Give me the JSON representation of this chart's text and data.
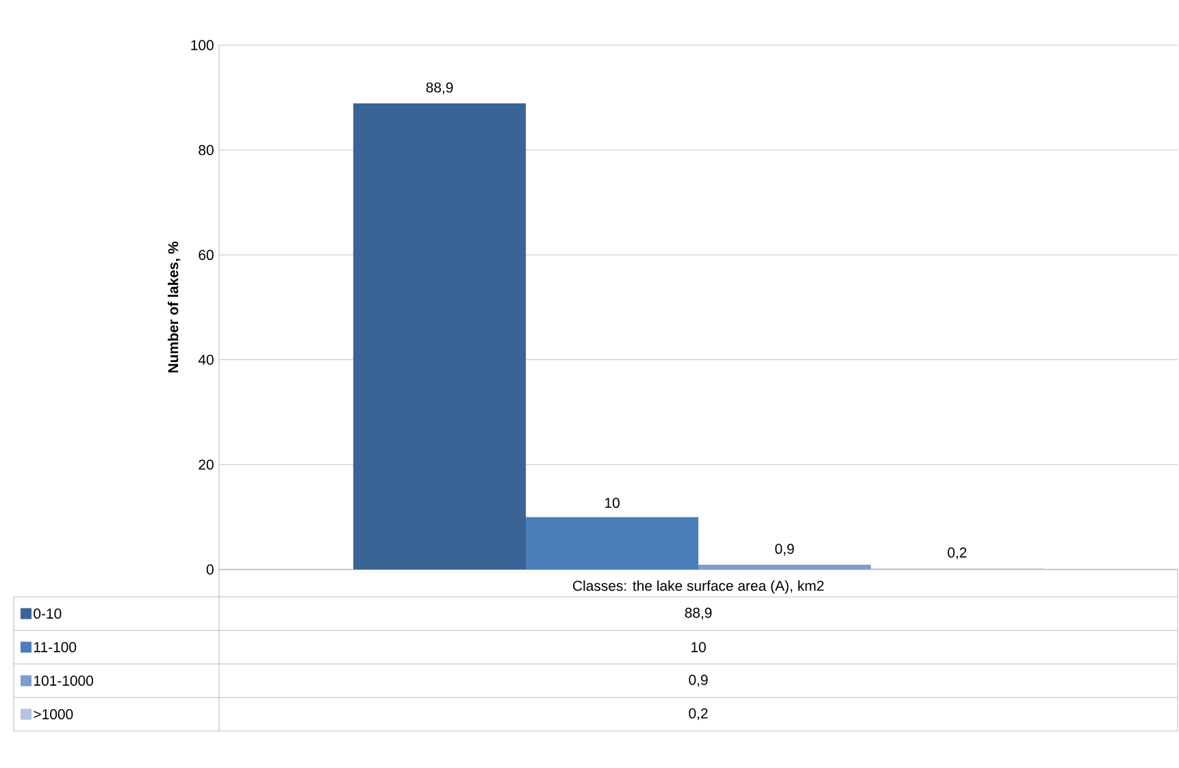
{
  "chart_data": {
    "type": "bar",
    "ylabel": "Number of lakes, %",
    "categories": [
      "Classes: the lake surface area (A), km2"
    ],
    "series": [
      {
        "name": "0-10",
        "color": "#3a6496",
        "values": [
          88.9
        ],
        "value_labels": [
          "88,9"
        ]
      },
      {
        "name": "11-100",
        "color": "#4a7ebb",
        "values": [
          10
        ],
        "value_labels": [
          "10"
        ]
      },
      {
        "name": "101-1000",
        "color": "#7c9ccc",
        "values": [
          0.9
        ],
        "value_labels": [
          "0,9"
        ]
      },
      {
        "name": ">1000",
        "color": "#b3c5e2",
        "values": [
          0.2
        ],
        "value_labels": [
          "0,2"
        ]
      }
    ],
    "ylim": [
      0,
      100
    ],
    "yticks": [
      0,
      20,
      40,
      60,
      80,
      100
    ],
    "grid": "y",
    "legend": "bottom"
  }
}
